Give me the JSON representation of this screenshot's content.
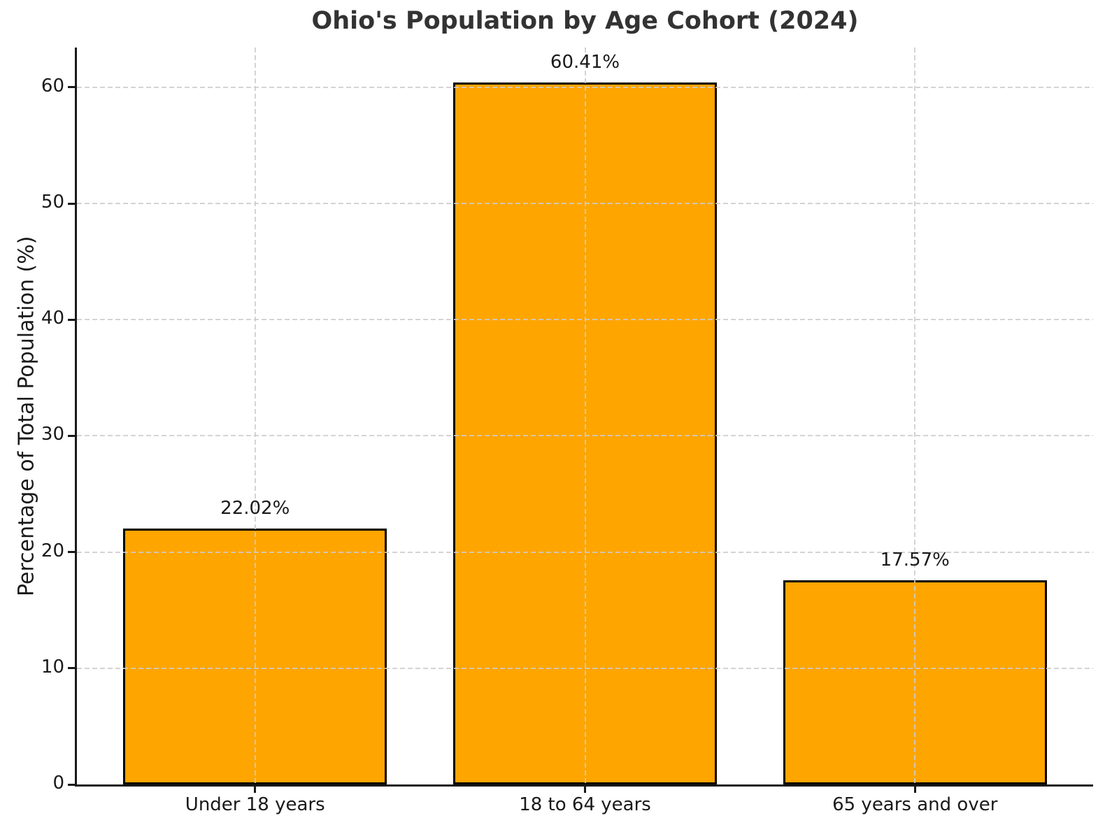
{
  "chart_data": {
    "type": "bar",
    "title": "Ohio's Population by Age Cohort (2024)",
    "xlabel": "",
    "ylabel": "Percentage of Total Population (%)",
    "categories": [
      "Under 18 years",
      "18 to 64 years",
      "65 years and over"
    ],
    "values": [
      22.02,
      60.41,
      17.57
    ],
    "value_labels": [
      "22.02%",
      "60.41%",
      "17.57%"
    ],
    "yticks": [
      0,
      10,
      20,
      30,
      40,
      50,
      60
    ],
    "ylim": [
      0,
      63.43
    ],
    "grid": true,
    "grid_style": "dashed",
    "legend": "none",
    "bar_color": "#FFA500",
    "bar_edge_color": "#000000",
    "grid_color": "#CCCCCC",
    "axis_color": "#1A1A1A",
    "text_color": "#1A1A1A",
    "title_color": "#333333",
    "background_color": "#FFFFFF"
  }
}
